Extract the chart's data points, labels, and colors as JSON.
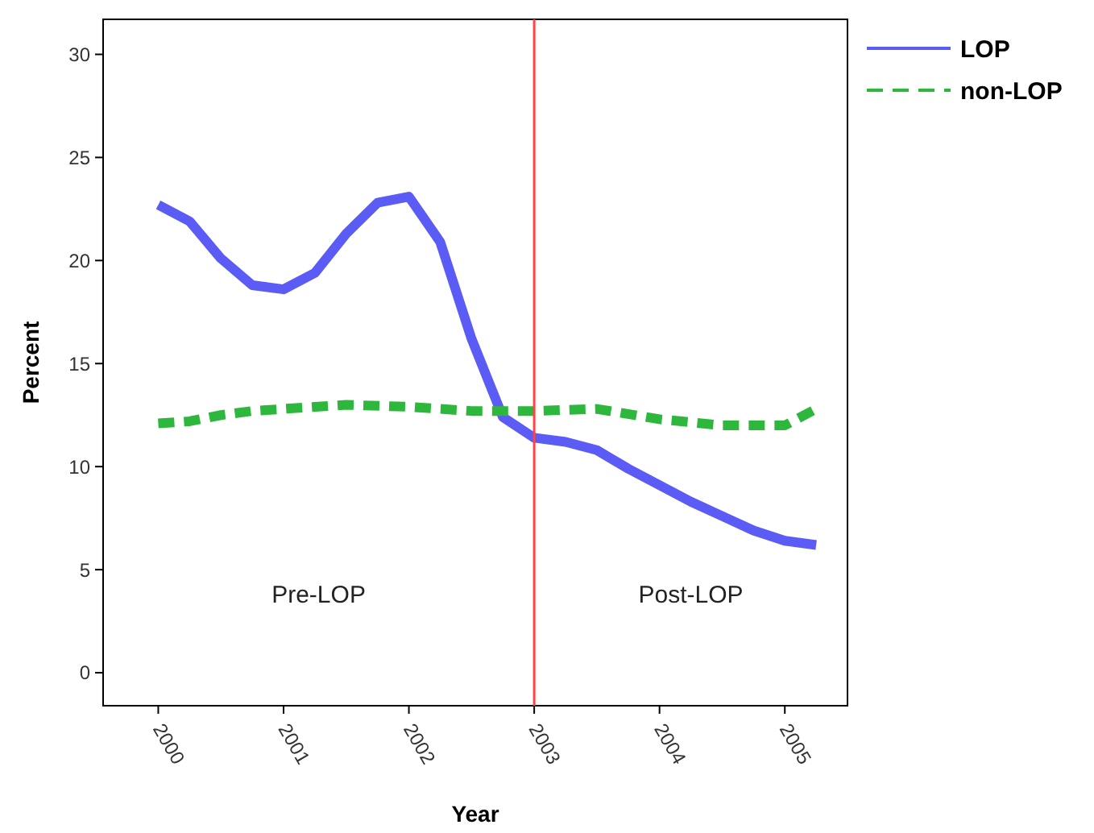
{
  "chart_data": {
    "type": "line",
    "xlabel": "Year",
    "ylabel": "Percent",
    "xlim": [
      1999.56,
      2005.5
    ],
    "xticks": [
      2000,
      2001,
      2002,
      2003,
      2004,
      2005
    ],
    "ylim": [
      -1.6,
      31.7
    ],
    "yticks": [
      0,
      5,
      10,
      15,
      20,
      25,
      30
    ],
    "grid": false,
    "legend": "top right",
    "ref_lines": [
      {
        "axis": "x",
        "value": 2003,
        "color": "#ff4444"
      }
    ],
    "annotations": [
      "Pre-LOP",
      "Post-LOP"
    ],
    "series": [
      {
        "name": "LOP",
        "color": "#5b5bf5",
        "line_style": "solid",
        "x": [
          2000,
          2000.25,
          2000.5,
          2000.75,
          2001,
          2001.25,
          2001.5,
          2001.75,
          2002,
          2002.25,
          2002.5,
          2002.75,
          2003,
          2003.25,
          2003.5,
          2003.75,
          2004,
          2004.25,
          2004.5,
          2004.75,
          2005,
          2005.25
        ],
        "values": [
          22.7,
          21.9,
          20.1,
          18.8,
          18.6,
          19.4,
          21.3,
          22.8,
          23.1,
          20.9,
          16.2,
          12.4,
          11.4,
          11.2,
          10.8,
          9.9,
          9.1,
          8.3,
          7.6,
          6.9,
          6.4,
          6.2
        ]
      },
      {
        "name": "non-LOP",
        "color": "#2db83d",
        "line_style": "dashed",
        "x": [
          2000,
          2000.25,
          2000.5,
          2000.75,
          2001,
          2001.5,
          2002,
          2002.5,
          2003,
          2003.5,
          2004,
          2004.5,
          2005,
          2005.25
        ],
        "values": [
          12.1,
          12.2,
          12.5,
          12.7,
          12.8,
          13.0,
          12.9,
          12.7,
          12.7,
          12.8,
          12.3,
          12.0,
          12.0,
          12.8
        ]
      }
    ]
  }
}
